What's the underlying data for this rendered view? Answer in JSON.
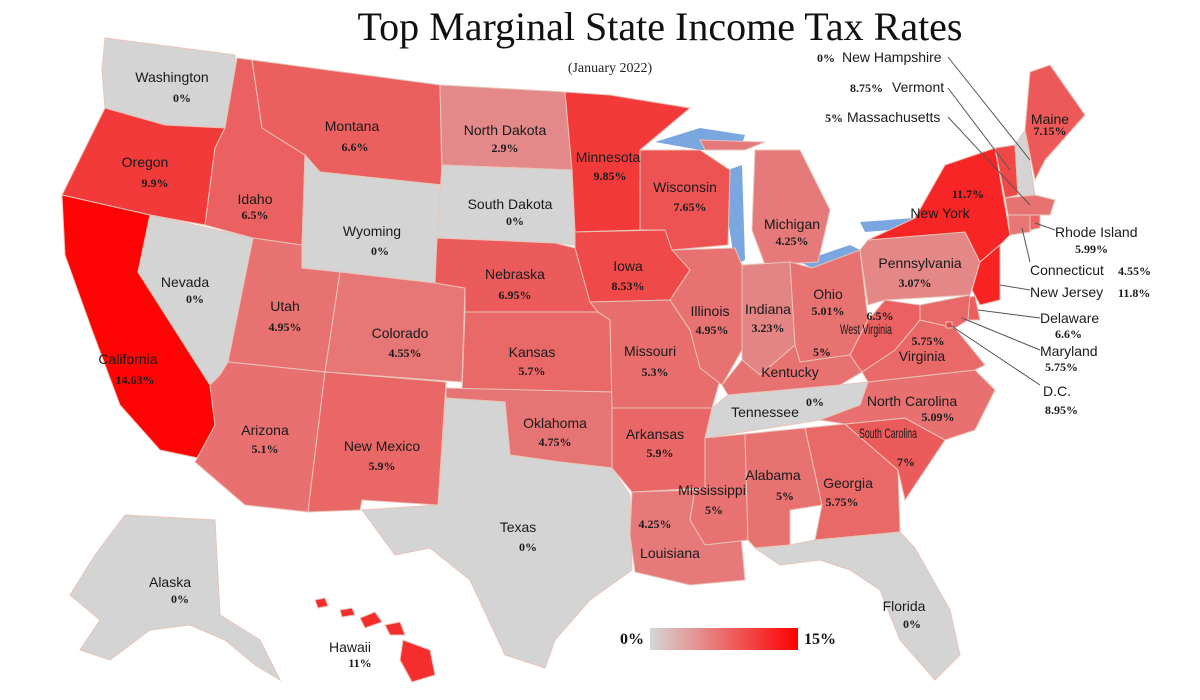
{
  "title": "Top Marginal State Income Tax Rates",
  "subtitle": "(January 2022)",
  "legend": {
    "min_label": "0%",
    "max_label": "15%",
    "min_color": "#d6d6d6",
    "max_color": "#ff0000"
  },
  "colors": {
    "zero": "#d4d4d4",
    "low": "#dba3a3",
    "mid": "#e07070",
    "high": "#e65353",
    "top": "#ff0000",
    "water": "#7aa7e0",
    "border": "#a88270"
  },
  "states": {
    "washington": {
      "name": "Washington",
      "rate": "0%",
      "value": 0
    },
    "oregon": {
      "name": "Oregon",
      "rate": "9.9%",
      "value": 9.9
    },
    "california": {
      "name": "California",
      "rate": "14.63%",
      "value": 14.63
    },
    "nevada": {
      "name": "Nevada",
      "rate": "0%",
      "value": 0
    },
    "idaho": {
      "name": "Idaho",
      "rate": "6.5%",
      "value": 6.5
    },
    "montana": {
      "name": "Montana",
      "rate": "6.6%",
      "value": 6.6
    },
    "wyoming": {
      "name": "Wyoming",
      "rate": "0%",
      "value": 0
    },
    "utah": {
      "name": "Utah",
      "rate": "4.95%",
      "value": 4.95
    },
    "arizona": {
      "name": "Arizona",
      "rate": "5.1%",
      "value": 5.1
    },
    "colorado": {
      "name": "Colorado",
      "rate": "4.55%",
      "value": 4.55
    },
    "new_mexico": {
      "name": "New Mexico",
      "rate": "5.9%",
      "value": 5.9
    },
    "north_dakota": {
      "name": "North Dakota",
      "rate": "2.9%",
      "value": 2.9
    },
    "south_dakota": {
      "name": "South Dakota",
      "rate": "0%",
      "value": 0
    },
    "nebraska": {
      "name": "Nebraska",
      "rate": "6.95%",
      "value": 6.95
    },
    "kansas": {
      "name": "Kansas",
      "rate": "5.7%",
      "value": 5.7
    },
    "oklahoma": {
      "name": "Oklahoma",
      "rate": "4.75%",
      "value": 4.75
    },
    "texas": {
      "name": "Texas",
      "rate": "0%",
      "value": 0
    },
    "minnesota": {
      "name": "Minnesota",
      "rate": "9.85%",
      "value": 9.85
    },
    "iowa": {
      "name": "Iowa",
      "rate": "8.53%",
      "value": 8.53
    },
    "missouri": {
      "name": "Missouri",
      "rate": "5.3%",
      "value": 5.3
    },
    "arkansas": {
      "name": "Arkansas",
      "rate": "5.9%",
      "value": 5.9
    },
    "louisiana": {
      "name": "Louisiana",
      "rate": "4.25%",
      "value": 4.25
    },
    "wisconsin": {
      "name": "Wisconsin",
      "rate": "7.65%",
      "value": 7.65
    },
    "illinois": {
      "name": "Illinois",
      "rate": "4.95%",
      "value": 4.95
    },
    "michigan": {
      "name": "Michigan",
      "rate": "4.25%",
      "value": 4.25
    },
    "indiana": {
      "name": "Indiana",
      "rate": "3.23%",
      "value": 3.23
    },
    "ohio": {
      "name": "Ohio",
      "rate": "5.01%",
      "value": 5.01
    },
    "kentucky": {
      "name": "Kentucky",
      "rate": "5%",
      "value": 5
    },
    "tennessee": {
      "name": "Tennessee",
      "rate": "0%",
      "value": 0
    },
    "mississippi": {
      "name": "Mississippi",
      "rate": "5%",
      "value": 5
    },
    "alabama": {
      "name": "Alabama",
      "rate": "5%",
      "value": 5
    },
    "georgia": {
      "name": "Georgia",
      "rate": "5.75%",
      "value": 5.75
    },
    "florida": {
      "name": "Florida",
      "rate": "0%",
      "value": 0
    },
    "south_carolina": {
      "name": "South Carolina",
      "rate": "7%",
      "value": 7
    },
    "north_carolina": {
      "name": "North Carolina",
      "rate": "5.09%",
      "value": 5.09
    },
    "virginia": {
      "name": "Virginia",
      "rate": "5.75%",
      "value": 5.75
    },
    "west_virginia": {
      "name": "West Virginia",
      "rate": "6.5%",
      "value": 6.5
    },
    "pennsylvania": {
      "name": "Pennsylvania",
      "rate": "3.07%",
      "value": 3.07
    },
    "new_york": {
      "name": "New York",
      "rate": "11.7%",
      "value": 11.7
    },
    "maine": {
      "name": "Maine",
      "rate": "7.15%",
      "value": 7.15
    },
    "new_hampshire": {
      "name": "New Hampshire",
      "rate": "0%",
      "value": 0
    },
    "vermont": {
      "name": "Vermont",
      "rate": "8.75%",
      "value": 8.75
    },
    "massachusetts": {
      "name": "Massachusetts",
      "rate": "5%",
      "value": 5
    },
    "rhode_island": {
      "name": "Rhode Island",
      "rate": "5.99%",
      "value": 5.99
    },
    "connecticut": {
      "name": "Connecticut",
      "rate": "4.55%",
      "value": 4.55
    },
    "new_jersey": {
      "name": "New Jersey",
      "rate": "11.8%",
      "value": 11.8
    },
    "delaware": {
      "name": "Delaware",
      "rate": "6.6%",
      "value": 6.6
    },
    "maryland": {
      "name": "Maryland",
      "rate": "5.75%",
      "value": 5.75
    },
    "dc": {
      "name": "D.C.",
      "rate": "8.95%",
      "value": 8.95
    },
    "alaska": {
      "name": "Alaska",
      "rate": "0%",
      "value": 0
    },
    "hawaii": {
      "name": "Hawaii",
      "rate": "11%",
      "value": 11
    }
  }
}
